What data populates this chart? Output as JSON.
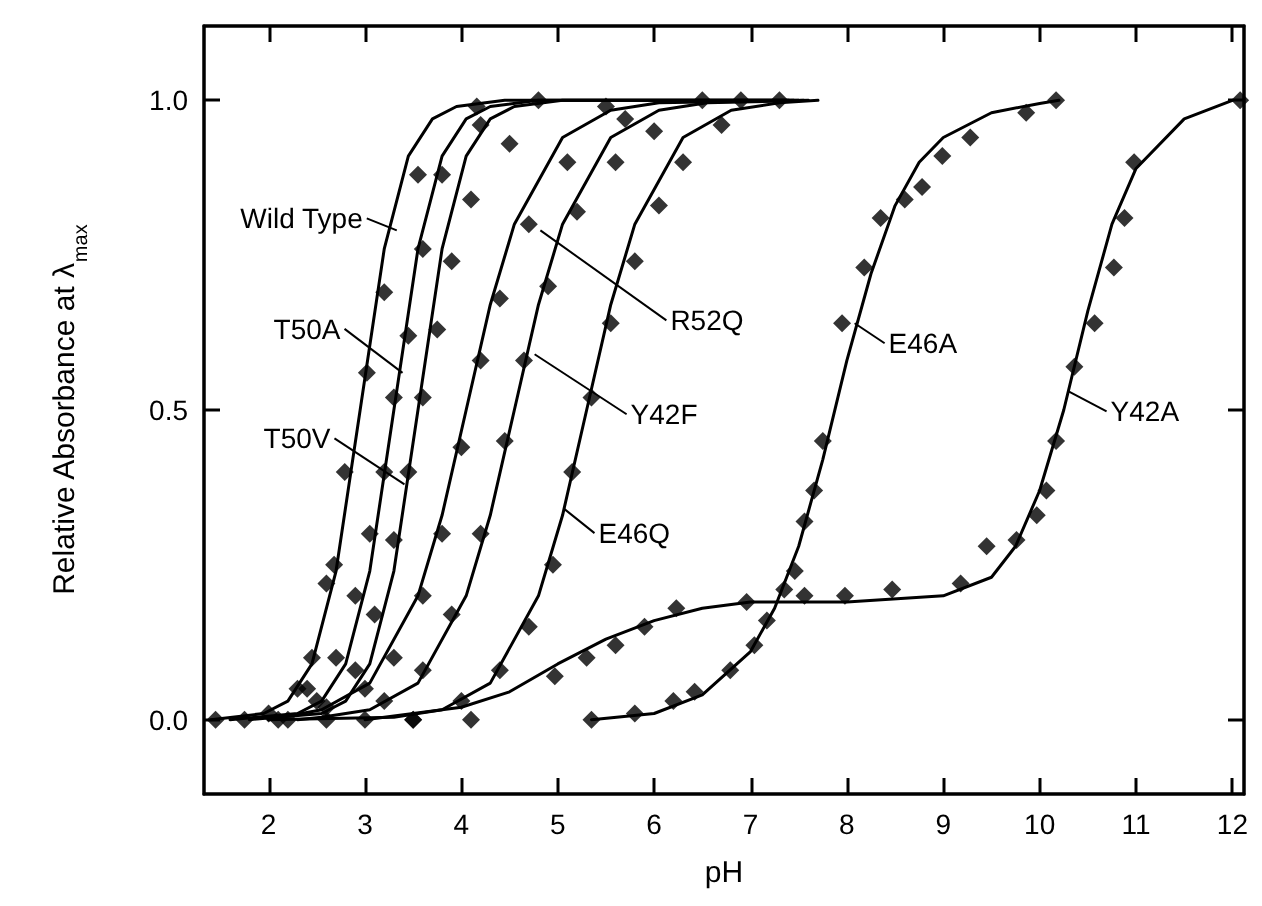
{
  "chart_data": {
    "type": "line",
    "xlabel": "pH",
    "ylabel": "Relative Absorbance at λ$_{max}$",
    "xlim": [
      1.33,
      12.12
    ],
    "ylim": [
      -0.12,
      1.12
    ],
    "xticks": [
      2,
      3,
      4,
      5,
      6,
      7,
      8,
      9,
      10,
      11,
      12
    ],
    "yticks": [
      {
        "value": 0,
        "label": "0.0"
      },
      {
        "value": 0.5,
        "label": "0.5"
      },
      {
        "value": 1,
        "label": "1.0"
      }
    ],
    "grid": false,
    "line_style": "solid",
    "series": [
      {
        "type": "line",
        "color": "#000000",
        "marker": "none",
        "x": [
          1.4,
          1.95,
          2.2,
          2.45,
          2.7,
          2.95,
          3.2,
          3.45,
          3.7,
          3.95,
          4.45,
          7.5
        ],
        "values": [
          0,
          0.01,
          0.03,
          0.09,
          0.24,
          0.5,
          0.76,
          0.91,
          0.97,
          0.99,
          1,
          1
        ]
      },
      {
        "type": "line",
        "color": "#000000",
        "marker": "none",
        "x": [
          1.6,
          2.3,
          2.55,
          2.8,
          3.05,
          3.3,
          3.55,
          3.8,
          4.05,
          4.3,
          4.8,
          7.45
        ],
        "values": [
          0,
          0.01,
          0.03,
          0.09,
          0.24,
          0.5,
          0.76,
          0.91,
          0.97,
          0.99,
          1,
          1
        ]
      },
      {
        "type": "line",
        "color": "#000000",
        "marker": "none",
        "x": [
          1.8,
          2.55,
          2.8,
          3.05,
          3.3,
          3.55,
          3.8,
          4.05,
          4.3,
          4.55,
          5.05,
          7.4
        ],
        "values": [
          0,
          0.01,
          0.03,
          0.09,
          0.24,
          0.5,
          0.76,
          0.91,
          0.97,
          0.99,
          1,
          1
        ]
      },
      {
        "type": "line",
        "color": "#000000",
        "marker": "none",
        "x": [
          2.0,
          2.55,
          3.05,
          3.55,
          3.8,
          4.05,
          4.3,
          4.55,
          5.05,
          5.55,
          6.05,
          7.55
        ],
        "values": [
          0,
          0.016,
          0.059,
          0.2,
          0.33,
          0.5,
          0.67,
          0.8,
          0.94,
          0.984,
          0.996,
          1
        ]
      },
      {
        "type": "line",
        "color": "#000000",
        "marker": "none",
        "x": [
          2.3,
          2.55,
          3.05,
          3.55,
          4.05,
          4.3,
          4.55,
          4.8,
          5.05,
          5.55,
          6.05,
          6.55,
          7.6
        ],
        "values": [
          0,
          0.004,
          0.016,
          0.059,
          0.2,
          0.33,
          0.5,
          0.67,
          0.8,
          0.94,
          0.984,
          0.996,
          1
        ]
      },
      {
        "type": "line",
        "color": "#000000",
        "marker": "none",
        "x": [
          2.0,
          3.3,
          3.8,
          4.3,
          4.8,
          5.05,
          5.3,
          5.55,
          5.8,
          6.3,
          6.8,
          7.3,
          7.7
        ],
        "values": [
          0,
          0.004,
          0.016,
          0.059,
          0.2,
          0.33,
          0.5,
          0.67,
          0.8,
          0.94,
          0.984,
          0.996,
          1
        ]
      },
      {
        "type": "line",
        "color": "#000000",
        "marker": "none",
        "x": [
          5.35,
          6.0,
          6.5,
          7.0,
          7.25,
          7.5,
          7.75,
          8.0,
          8.25,
          8.5,
          8.75,
          9.0,
          9.5,
          10.0,
          10.2
        ],
        "values": [
          0,
          0.01,
          0.04,
          0.11,
          0.18,
          0.28,
          0.42,
          0.58,
          0.72,
          0.83,
          0.9,
          0.94,
          0.98,
          0.995,
          1
        ]
      },
      {
        "type": "line",
        "color": "#000000",
        "marker": "none",
        "x": [
          3.0,
          3.5,
          4.0,
          4.5,
          5.0,
          5.5,
          6.0,
          6.5,
          7.0,
          8.0,
          9.0,
          9.5,
          9.75,
          10.0,
          10.25,
          10.5,
          10.75,
          11.0,
          11.5,
          12.0
        ],
        "values": [
          0,
          0.01,
          0.02,
          0.045,
          0.09,
          0.13,
          0.16,
          0.18,
          0.19,
          0.19,
          0.2,
          0.23,
          0.28,
          0.37,
          0.5,
          0.66,
          0.8,
          0.89,
          0.97,
          1
        ]
      },
      {
        "type": "scatter",
        "color": "#000000",
        "marker": "diamond",
        "x": [
          1.45,
          1.75,
          2.0,
          2.3,
          2.45,
          2.6,
          2.68,
          2.79,
          3.02,
          3.2,
          3.55,
          4.16
        ],
        "values": [
          0,
          0,
          null,
          0.05,
          0.1,
          0.22,
          0.25,
          0.4,
          0.56,
          0.69,
          0.88,
          0.99
        ]
      },
      {
        "type": "scatter",
        "color": "#000000",
        "marker": "diamond",
        "x": [
          2.0,
          2.4,
          2.7,
          2.9,
          3.05,
          3.2,
          3.3,
          3.45,
          3.6,
          3.8,
          4.2,
          4.8
        ],
        "values": [
          0.01,
          0.05,
          0.1,
          0.2,
          0.3,
          0.4,
          0.52,
          0.62,
          0.76,
          0.88,
          0.96,
          1
        ]
      },
      {
        "type": "scatter",
        "color": "#000000",
        "marker": "diamond",
        "x": [
          2.1,
          2.5,
          2.9,
          3.1,
          3.3,
          3.45,
          3.6,
          3.75,
          3.9,
          4.1,
          4.5,
          5.5
        ],
        "values": [
          0,
          0.03,
          0.08,
          0.17,
          0.29,
          0.4,
          0.52,
          0.63,
          0.74,
          0.84,
          0.93,
          0.99
        ]
      },
      {
        "type": "scatter",
        "color": "#000000",
        "marker": "diamond",
        "x": [
          2.2,
          2.6,
          3.0,
          3.3,
          3.6,
          3.8,
          4.0,
          4.2,
          4.4,
          4.7,
          5.1,
          5.7,
          6.5
        ],
        "values": [
          0,
          0.02,
          0.05,
          0.1,
          0.2,
          0.3,
          0.44,
          0.58,
          0.68,
          0.8,
          0.9,
          0.97,
          1
        ]
      },
      {
        "type": "scatter",
        "color": "#000000",
        "marker": "diamond",
        "x": [
          2.6,
          3.2,
          3.6,
          3.9,
          4.2,
          4.45,
          4.65,
          4.9,
          5.2,
          5.6,
          6.0,
          6.9
        ],
        "values": [
          0,
          0.03,
          0.08,
          0.17,
          0.3,
          0.45,
          0.58,
          0.7,
          0.82,
          0.9,
          0.95,
          1
        ]
      },
      {
        "type": "scatter",
        "color": "#000000",
        "marker": "diamond",
        "x": [
          3.0,
          3.5,
          4.0,
          4.4,
          4.7,
          4.95,
          5.15,
          5.35,
          5.55,
          5.8,
          6.05,
          6.3,
          6.7,
          7.3
        ],
        "values": [
          0,
          0,
          0.03,
          0.08,
          0.15,
          0.25,
          0.4,
          0.52,
          0.64,
          0.74,
          0.83,
          0.9,
          0.96,
          1
        ]
      },
      {
        "type": "scatter",
        "color": "#000000",
        "marker": "diamond",
        "x": [
          5.35,
          5.8,
          6.2,
          6.42,
          6.79,
          7.04,
          7.17,
          7.35,
          7.46,
          7.56,
          7.66,
          7.75,
          7.95,
          8.18,
          8.35,
          8.6,
          8.78,
          8.99,
          9.28,
          9.86,
          10.17
        ],
        "values": [
          0,
          0.01,
          0.03,
          0.045,
          0.08,
          0.12,
          0.16,
          0.21,
          0.24,
          0.32,
          0.37,
          0.45,
          0.64,
          0.73,
          0.81,
          0.84,
          0.86,
          0.91,
          0.94,
          0.98,
          1
        ]
      },
      {
        "type": "scatter",
        "color": "#000000",
        "marker": "diamond",
        "x": [
          3.5,
          4.1,
          4.97,
          5.3,
          5.6,
          5.9,
          6.23,
          6.96,
          7.56,
          7.98,
          8.47,
          9.18,
          9.45,
          9.76,
          9.97,
          10.07,
          10.17,
          10.36,
          10.57,
          10.77,
          10.88,
          10.98,
          12.08
        ],
        "values": [
          0,
          0,
          0.07,
          0.1,
          0.12,
          0.15,
          0.18,
          0.19,
          0.2,
          0.2,
          0.21,
          0.22,
          0.28,
          0.29,
          0.33,
          0.37,
          0.45,
          0.57,
          0.64,
          0.73,
          0.81,
          0.9,
          1
        ]
      }
    ],
    "annotations": [
      {
        "text": "Wild Type",
        "x": 3.33,
        "y": 0.79
      },
      {
        "text": "T50A",
        "x": 3.39,
        "y": 0.56
      },
      {
        "text": "T50V",
        "x": 3.41,
        "y": 0.38
      },
      {
        "text": "R52Q",
        "x": 4.82,
        "y": 0.79
      },
      {
        "text": "Y42F",
        "x": 4.76,
        "y": 0.59
      },
      {
        "text": "E46Q",
        "x": 5.07,
        "y": 0.34
      },
      {
        "text": "E46A",
        "x": 8.08,
        "y": 0.64
      },
      {
        "text": "Y42A",
        "x": 10.3,
        "y": 0.53
      }
    ]
  }
}
